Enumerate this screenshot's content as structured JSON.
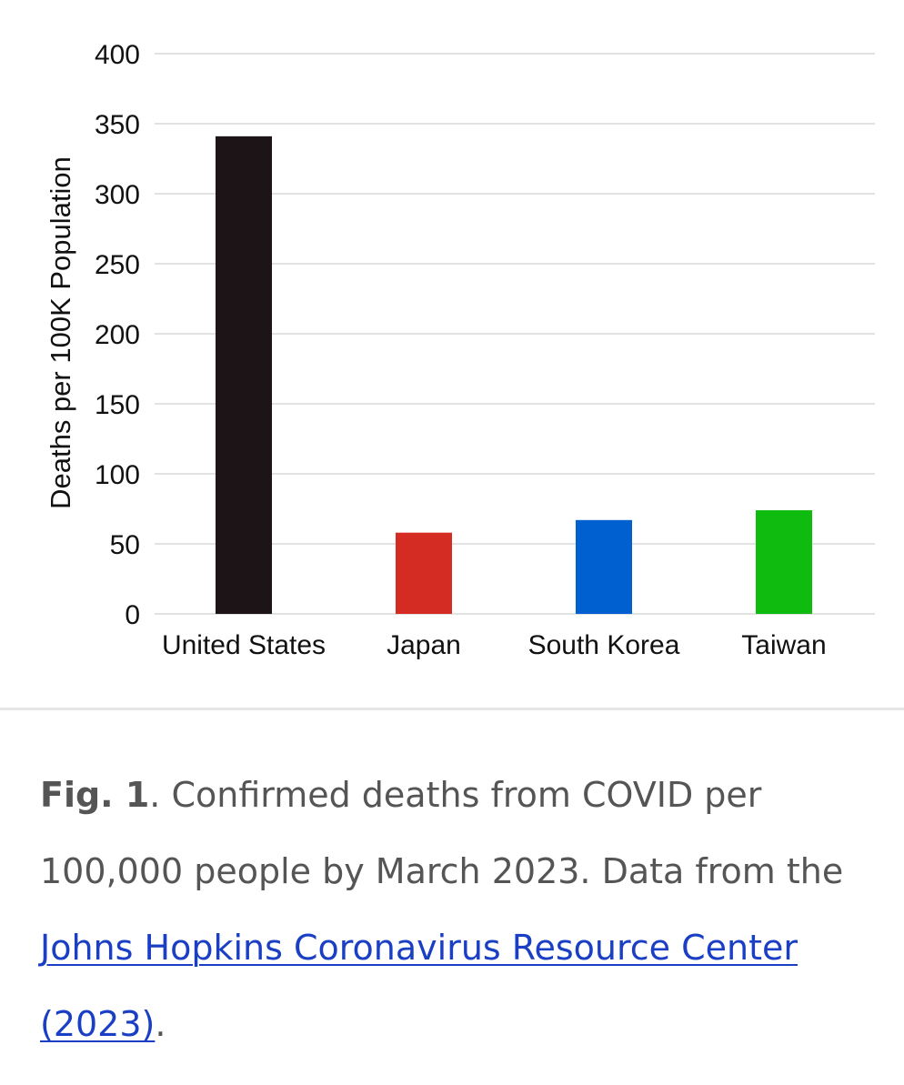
{
  "chart_data": {
    "type": "bar",
    "categories": [
      "United States",
      "Japan",
      "South Korea",
      "Taiwan"
    ],
    "values": [
      341,
      58,
      67,
      74
    ],
    "colors": [
      "#1c1416",
      "#d42b22",
      "#0060d0",
      "#10bb10"
    ],
    "ylabel": "Deaths per 100K Population",
    "ylim": [
      0,
      400
    ],
    "yticks": [
      "0",
      "50",
      "100",
      "150",
      "200",
      "250",
      "300",
      "350",
      "400"
    ],
    "ytick_values": [
      0,
      50,
      100,
      150,
      200,
      250,
      300,
      350,
      400
    ],
    "grid": true
  },
  "caption": {
    "fig_label": "Fig. 1",
    "text": ". Confirmed deaths from COVID per 100,000 people by March 2023. Data from the ",
    "link_text": "Johns Hopkins Coronavirus Resource Center (2023)",
    "end": ".",
    "link_color": "#1a3fc4"
  }
}
